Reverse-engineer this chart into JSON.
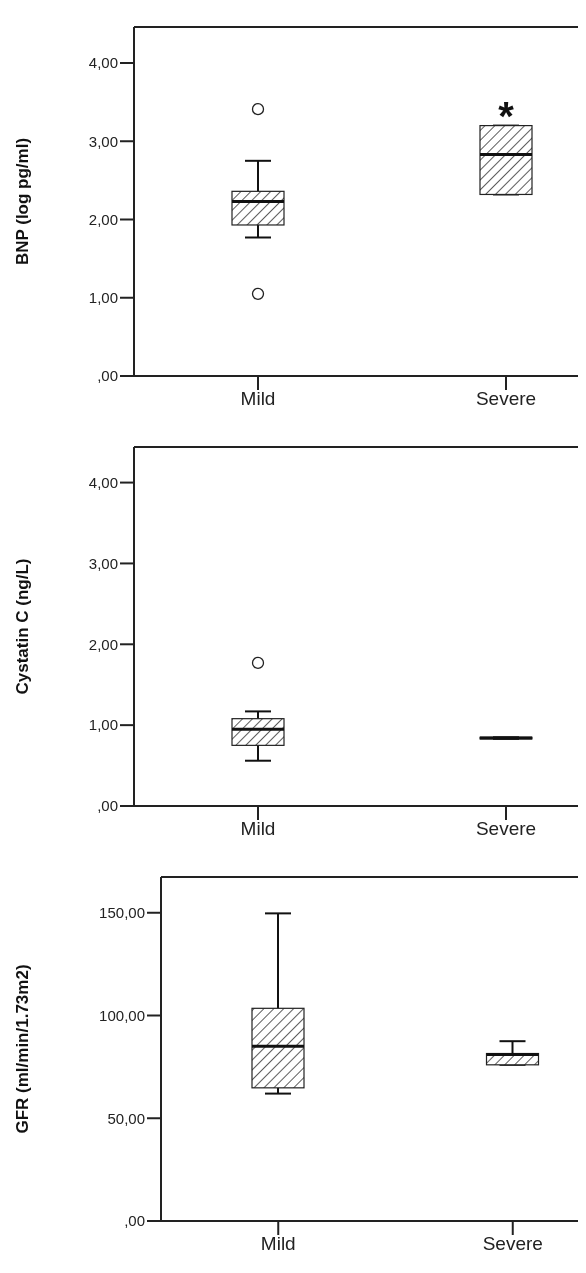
{
  "chart_data": [
    {
      "type": "box",
      "ylabel": "BNP (log pg/ml)",
      "categories": [
        "Mild",
        "Severe"
      ],
      "boxes": [
        {
          "low": 1.77,
          "q1": 1.93,
          "median": 2.23,
          "q3": 2.36,
          "high": 2.75,
          "outliers": [
            3.41,
            1.05
          ]
        },
        {
          "low": 2.32,
          "q1": 2.32,
          "median": 2.83,
          "q3": 3.2,
          "high": 3.2
        }
      ],
      "ylim": [
        0,
        4.46
      ],
      "yticks": [
        {
          "value": 0,
          "label": ",00"
        },
        {
          "value": 1,
          "label": "1,00"
        },
        {
          "value": 2,
          "label": "2,00"
        },
        {
          "value": 3,
          "label": "3,00"
        },
        {
          "value": 4,
          "label": "4,00"
        }
      ],
      "annotations": [
        "*"
      ]
    },
    {
      "type": "box",
      "ylabel": "Cystatin C (ng/L)",
      "categories": [
        "Mild",
        "Severe"
      ],
      "boxes": [
        {
          "low": 0.56,
          "q1": 0.75,
          "median": 0.95,
          "q3": 1.08,
          "high": 1.17,
          "outliers": [
            1.77
          ]
        },
        {
          "low": 0.83,
          "q1": 0.83,
          "median": 0.84,
          "q3": 0.85,
          "high": 0.85
        }
      ],
      "ylim": [
        0,
        4.44
      ],
      "yticks": [
        {
          "value": 0,
          "label": ",00"
        },
        {
          "value": 1,
          "label": "1,00"
        },
        {
          "value": 2,
          "label": "2,00"
        },
        {
          "value": 3,
          "label": "3,00"
        },
        {
          "value": 4,
          "label": "4,00"
        }
      ]
    },
    {
      "type": "box",
      "ylabel": "GFR (ml/min/1.73m2)",
      "categories": [
        "Mild",
        "Severe"
      ],
      "boxes": [
        {
          "low": 62,
          "q1": 64.8,
          "median": 85,
          "q3": 103.5,
          "high": 149.7
        },
        {
          "low": 76,
          "q1": 76,
          "median": 81,
          "q3": 81.5,
          "high": 87.5
        }
      ],
      "ylim": [
        0,
        167.4
      ],
      "yticks": [
        {
          "value": 0,
          "label": ",00"
        },
        {
          "value": 50,
          "label": "50,00"
        },
        {
          "value": 100,
          "label": "100,00"
        },
        {
          "value": 150,
          "label": "150,00"
        }
      ]
    }
  ]
}
